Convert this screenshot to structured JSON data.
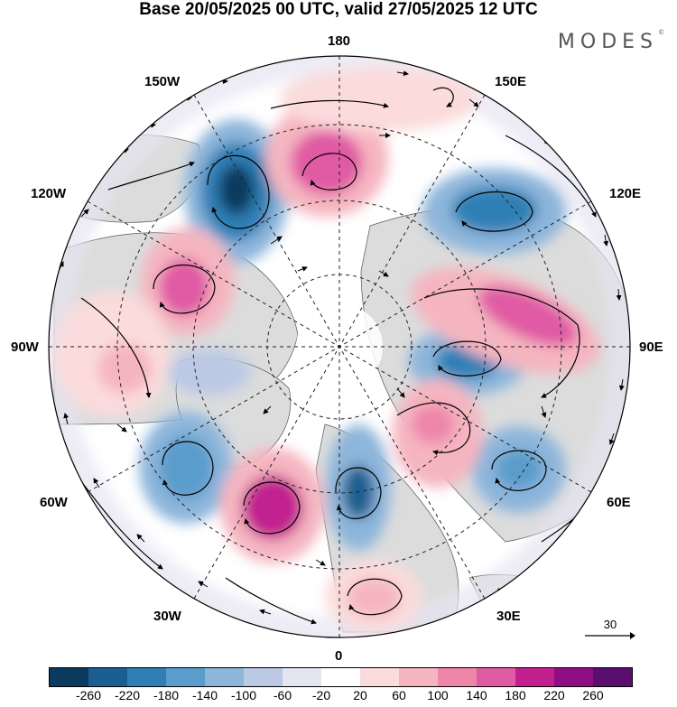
{
  "title": "Base 20/05/2025 00 UTC, valid 27/05/2025 12 UTC",
  "logo": {
    "text": "MODES",
    "mark": "©"
  },
  "map": {
    "projection": "north-polar-stereographic",
    "meridian_labels": {
      "top": "180",
      "bottom": "0",
      "left": "90W",
      "right": "90E",
      "upper_left_1": "150W",
      "upper_left_2": "120W",
      "upper_right_1": "150E",
      "upper_right_2": "120E",
      "lower_left_1": "60W",
      "lower_left_2": "30W",
      "lower_right_1": "60E",
      "lower_right_2": "30E"
    },
    "reference_vector": "30"
  },
  "colorbar": {
    "labels": [
      "-260",
      "-220",
      "-180",
      "-140",
      "-100",
      "-60",
      "-20",
      "20",
      "60",
      "100",
      "140",
      "180",
      "220",
      "260"
    ],
    "colors": [
      "#0b3b5e",
      "#1a5f8f",
      "#2f7fb5",
      "#5a9ccb",
      "#8db6db",
      "#bcc9e5",
      "#e5e4f1",
      "#ffffff",
      "#fbdbdc",
      "#f5b5c0",
      "#ee86aa",
      "#e05aa4",
      "#c2208f",
      "#8e0f83",
      "#5a0e6e"
    ]
  }
}
